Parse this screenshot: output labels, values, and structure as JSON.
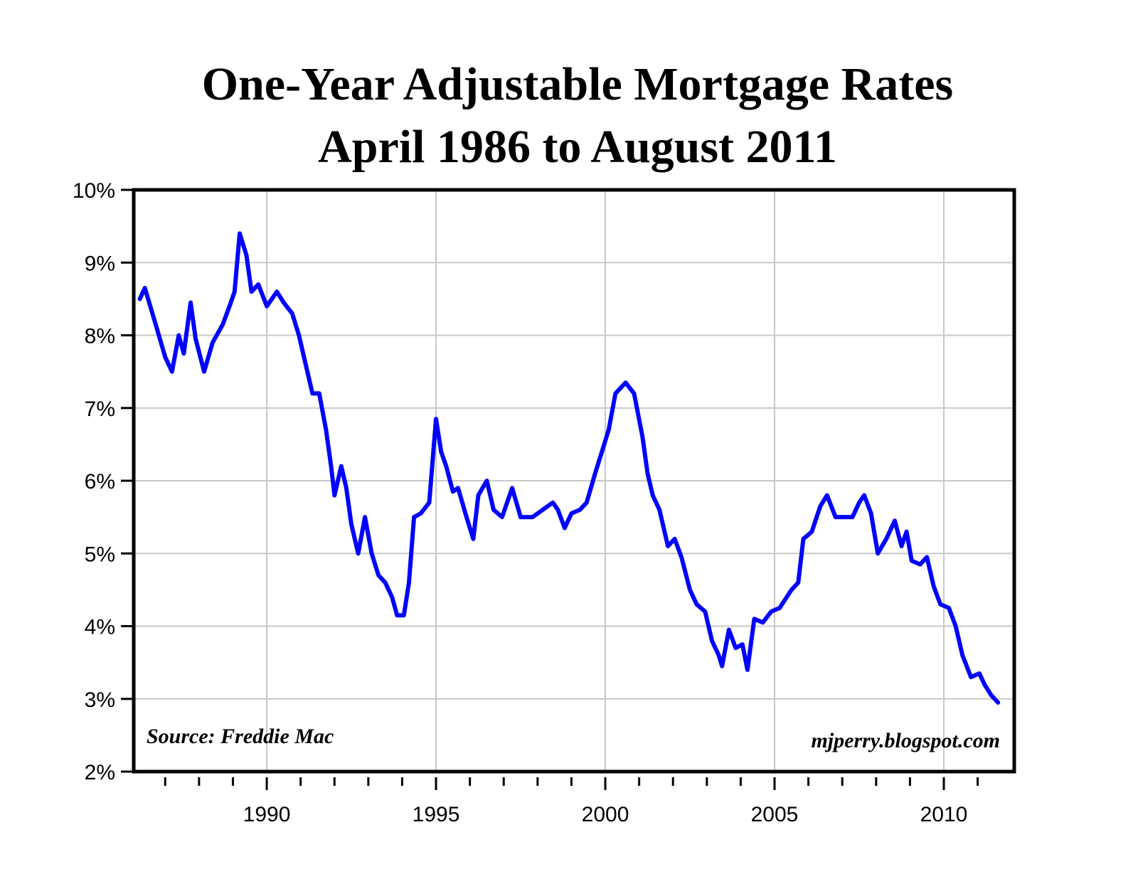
{
  "chart_data": {
    "type": "line",
    "title": "One-Year Adjustable Mortgage Rates",
    "subtitle": "April 1986 to August 2011",
    "annotations": [
      "Source: Freddie Mac",
      "mjperry.blogspot.com"
    ],
    "x": [
      1986.25,
      1986.4,
      1986.75,
      1987.0,
      1987.2,
      1987.4,
      1987.55,
      1987.75,
      1987.9,
      1988.15,
      1988.4,
      1988.7,
      1988.9,
      1989.05,
      1989.2,
      1989.4,
      1989.55,
      1989.75,
      1990.0,
      1990.3,
      1990.5,
      1990.75,
      1990.95,
      1991.15,
      1991.35,
      1991.55,
      1991.75,
      1991.9,
      1992.0,
      1992.2,
      1992.35,
      1992.5,
      1992.7,
      1992.9,
      1993.1,
      1993.3,
      1993.5,
      1993.7,
      1993.85,
      1994.05,
      1994.2,
      1994.35,
      1994.55,
      1994.8,
      1995.0,
      1995.15,
      1995.3,
      1995.5,
      1995.65,
      1995.9,
      1996.1,
      1996.25,
      1996.5,
      1996.7,
      1996.95,
      1997.25,
      1997.5,
      1997.85,
      1998.15,
      1998.45,
      1998.6,
      1998.8,
      1999.0,
      1999.25,
      1999.45,
      1999.7,
      1999.9,
      2000.1,
      2000.3,
      2000.6,
      2000.85,
      2001.1,
      2001.25,
      2001.4,
      2001.6,
      2001.85,
      2002.05,
      2002.25,
      2002.5,
      2002.7,
      2002.95,
      2003.15,
      2003.35,
      2003.45,
      2003.65,
      2003.85,
      2004.05,
      2004.2,
      2004.4,
      2004.65,
      2004.9,
      2005.15,
      2005.5,
      2005.7,
      2005.85,
      2006.1,
      2006.35,
      2006.55,
      2006.8,
      2007.05,
      2007.3,
      2007.5,
      2007.65,
      2007.85,
      2008.05,
      2008.3,
      2008.55,
      2008.75,
      2008.9,
      2009.05,
      2009.3,
      2009.5,
      2009.7,
      2009.9,
      2010.15,
      2010.35,
      2010.55,
      2010.8,
      2011.05,
      2011.2,
      2011.4,
      2011.6
    ],
    "series": [
      {
        "color": "#0000ff",
        "values": [
          8.5,
          8.65,
          8.1,
          7.7,
          7.5,
          8.0,
          7.75,
          8.45,
          7.95,
          7.5,
          7.9,
          8.15,
          8.4,
          8.6,
          9.4,
          9.1,
          8.6,
          8.7,
          8.4,
          8.6,
          8.45,
          8.3,
          8.0,
          7.6,
          7.2,
          7.2,
          6.7,
          6.2,
          5.8,
          6.2,
          5.9,
          5.4,
          5.0,
          5.5,
          5.0,
          4.7,
          4.6,
          4.4,
          4.15,
          4.15,
          4.6,
          5.5,
          5.55,
          5.7,
          6.85,
          6.4,
          6.2,
          5.85,
          5.9,
          5.5,
          5.2,
          5.8,
          6.0,
          5.6,
          5.5,
          5.9,
          5.5,
          5.5,
          5.6,
          5.7,
          5.6,
          5.35,
          5.55,
          5.6,
          5.7,
          6.1,
          6.4,
          6.7,
          7.2,
          7.35,
          7.2,
          6.6,
          6.1,
          5.8,
          5.6,
          5.1,
          5.2,
          4.95,
          4.5,
          4.3,
          4.2,
          3.8,
          3.6,
          3.45,
          3.95,
          3.7,
          3.75,
          3.4,
          4.1,
          4.05,
          4.2,
          4.25,
          4.5,
          4.6,
          5.2,
          5.3,
          5.65,
          5.8,
          5.5,
          5.5,
          5.5,
          5.7,
          5.8,
          5.55,
          5.0,
          5.2,
          5.45,
          5.1,
          5.3,
          4.9,
          4.85,
          4.95,
          4.55,
          4.3,
          4.25,
          4.0,
          3.6,
          3.3,
          3.35,
          3.2,
          3.05,
          2.95
        ]
      }
    ],
    "xlim": [
      1986.07,
      2012.08
    ],
    "xticks": [
      1990,
      1995,
      2000,
      2005,
      2010
    ],
    "xticks_minor": [
      1987,
      1988,
      1989,
      1991,
      1992,
      1993,
      1994,
      1996,
      1997,
      1998,
      1999,
      2001,
      2002,
      2003,
      2004,
      2006,
      2007,
      2008,
      2009,
      2011
    ],
    "ylim": [
      2,
      10
    ],
    "yticks": [
      {
        "value": 2,
        "label": "2%"
      },
      {
        "value": 3,
        "label": "3%"
      },
      {
        "value": 4,
        "label": "4%"
      },
      {
        "value": 5,
        "label": "5%"
      },
      {
        "value": 6,
        "label": "6%"
      },
      {
        "value": 7,
        "label": "7%"
      },
      {
        "value": 8,
        "label": "8%"
      },
      {
        "value": 9,
        "label": "9%"
      },
      {
        "value": 10,
        "label": "10%"
      }
    ],
    "grid": true
  }
}
